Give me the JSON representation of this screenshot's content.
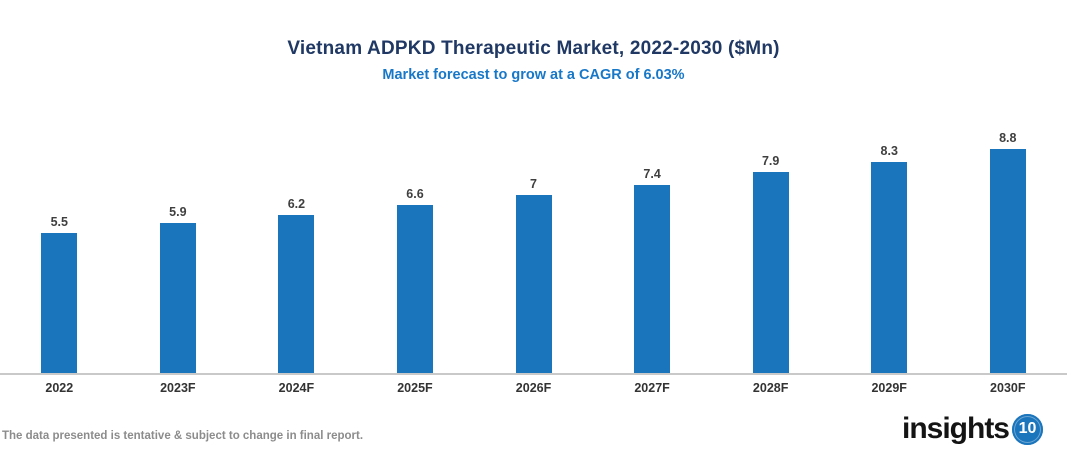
{
  "header": {
    "title": "Vietnam ADPKD Therapeutic Market, 2022-2030 ($Mn)",
    "subtitle": "Market forecast to grow at a CAGR of 6.03%"
  },
  "chart_data": {
    "type": "bar",
    "title": "Vietnam ADPKD Therapeutic Market, 2022-2030 ($Mn)",
    "subtitle": "Market forecast to grow at a CAGR of 6.03%",
    "categories": [
      "2022",
      "2023F",
      "2024F",
      "2025F",
      "2026F",
      "2027F",
      "2028F",
      "2029F",
      "2030F"
    ],
    "values": [
      5.5,
      5.9,
      6.2,
      6.6,
      7,
      7.4,
      7.9,
      8.3,
      8.8
    ],
    "value_labels": [
      "5.5",
      "5.9",
      "6.2",
      "6.6",
      "7",
      "7.4",
      "7.9",
      "8.3",
      "8.8"
    ],
    "xlabel": "",
    "ylabel": "",
    "ylim": [
      0,
      10.5
    ],
    "grid": false,
    "legend": false,
    "bar_color": "#1B75BC",
    "axis_line_color": "#C9C9C9",
    "cagr": "6.03%"
  },
  "footer": {
    "disclaimer": "The data presented is tentative & subject to change in final report.",
    "logo_text": "insights",
    "logo_badge": "10"
  },
  "colors": {
    "title": "#1F3864",
    "subtitle": "#1878C8",
    "bar": "#1B75BC",
    "value_label": "#3F3F3F",
    "x_label": "#333333",
    "disclaimer": "#8C8C8C"
  }
}
